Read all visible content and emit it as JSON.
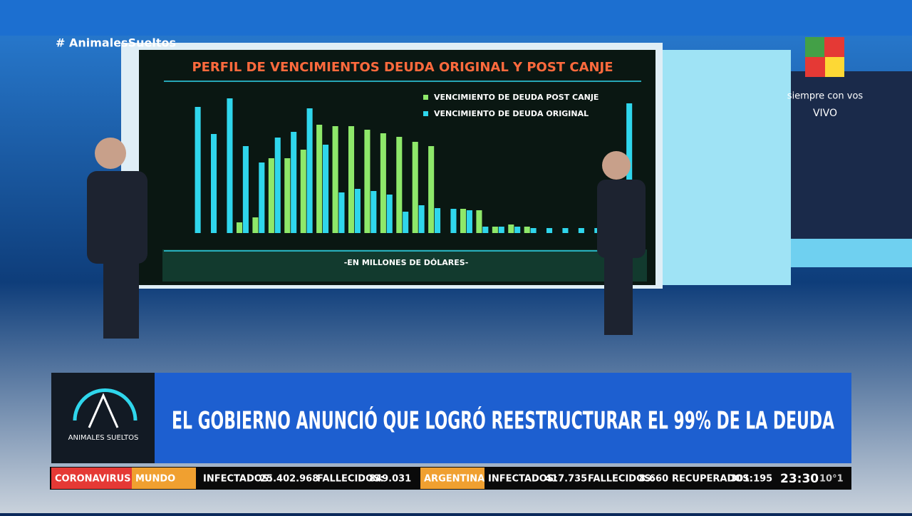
{
  "overlay": {
    "hashtag": "# AnimalesSueltos",
    "channel_tagline": "siempre con vos",
    "live": "VIVO"
  },
  "chart_data": {
    "type": "bar",
    "title": "PERFIL DE VENCIMIENTOS DEUDA ORIGINAL Y POST CANJE",
    "x_label": "-EN MILLONES DE DÓLARES-",
    "categories": [
      null,
      null,
      null,
      null,
      null,
      null,
      null,
      null,
      null,
      null,
      null,
      null,
      null,
      null,
      null,
      null,
      null,
      null,
      null,
      null,
      null,
      null,
      null,
      null,
      null,
      null,
      null,
      null
    ],
    "ylim": [
      0,
      20000
    ],
    "series": [
      {
        "name": "VENCIMIENTO DE DEUDA POST CANJE",
        "color": "#8ee86a",
        "values": [
          null,
          null,
          null,
          1500,
          2200,
          10500,
          10500,
          11700,
          15200,
          15000,
          15000,
          14500,
          14000,
          13500,
          12800,
          12200,
          null,
          3400,
          3200,
          900,
          1200,
          900,
          null,
          null,
          null,
          null,
          null,
          null
        ]
      },
      {
        "name": "VENCIMIENTO DE DEUDA ORIGINAL",
        "color": "#2fd6ec",
        "values": [
          17700,
          13900,
          18900,
          12200,
          9900,
          13400,
          14200,
          17500,
          12400,
          5700,
          6200,
          5900,
          5400,
          3000,
          3900,
          3500,
          3400,
          3200,
          900,
          900,
          900,
          700,
          700,
          700,
          700,
          700,
          3500,
          18200
        ]
      }
    ]
  },
  "lower_third": {
    "logo": "ANIMALES SUELTOS",
    "headline": "EL GOBIERNO ANUNCIÓ QUE LOGRÓ REESTRUCTURAR EL 99% DE LA DEUDA"
  },
  "ticker": {
    "items": [
      "CORONAVIRUS",
      "MUNDO",
      "INFECTADOS:",
      "25.402.968",
      "FALLECIDOS:",
      "849.031",
      "ARGENTINA",
      "INFECTADOS:",
      "417.735",
      "FALLECIDOS:",
      "8.660",
      "RECUPERADOS:",
      "301.195",
      "23:30",
      "10°1"
    ]
  }
}
